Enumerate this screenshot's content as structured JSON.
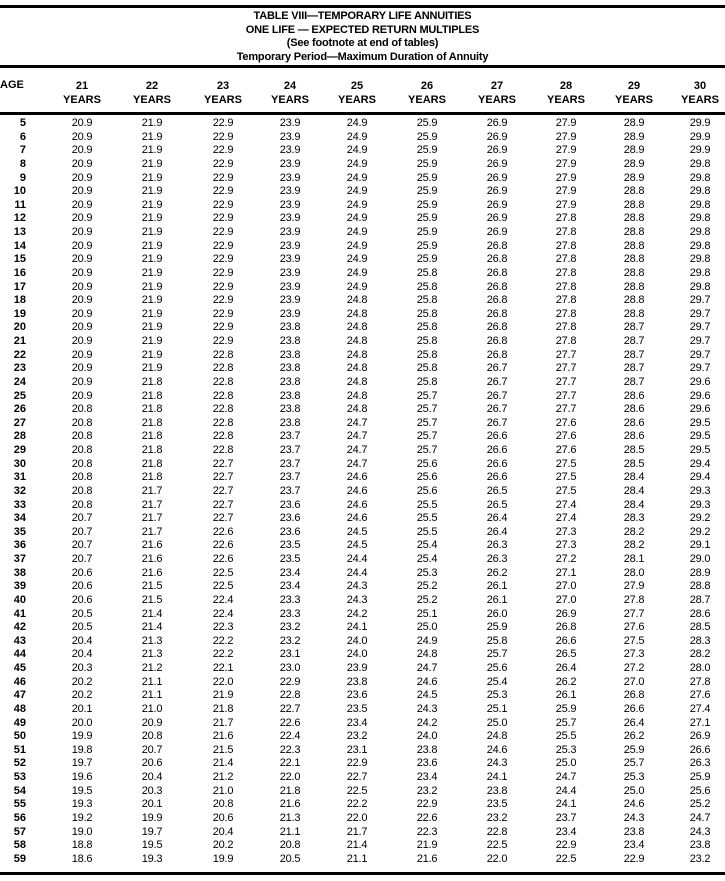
{
  "title": {
    "line1": "TABLE VIII—TEMPORARY LIFE ANNUITIES",
    "line2": "ONE LIFE — EXPECTED RETURN MULTIPLES",
    "line3": "(See footnote at end of tables)",
    "line4": "Temporary Period—Maximum Duration of Annuity"
  },
  "header": {
    "age_label": "AGE",
    "columns": [
      {
        "num": "21",
        "unit": "YEARS"
      },
      {
        "num": "22",
        "unit": "YEARS"
      },
      {
        "num": "23",
        "unit": "YEARS"
      },
      {
        "num": "24",
        "unit": "YEARS"
      },
      {
        "num": "25",
        "unit": "YEARS"
      },
      {
        "num": "26",
        "unit": "YEARS"
      },
      {
        "num": "27",
        "unit": "YEARS"
      },
      {
        "num": "28",
        "unit": "YEARS"
      },
      {
        "num": "29",
        "unit": "YEARS"
      },
      {
        "num": "30",
        "unit": "YEARS"
      }
    ]
  },
  "rows": [
    {
      "age": "5",
      "values": [
        "20.9",
        "21.9",
        "22.9",
        "23.9",
        "24.9",
        "25.9",
        "26.9",
        "27.9",
        "28.9",
        "29.9"
      ]
    },
    {
      "age": "6",
      "values": [
        "20.9",
        "21.9",
        "22.9",
        "23.9",
        "24.9",
        "25.9",
        "26.9",
        "27.9",
        "28.9",
        "29.9"
      ]
    },
    {
      "age": "7",
      "values": [
        "20.9",
        "21.9",
        "22.9",
        "23.9",
        "24.9",
        "25.9",
        "26.9",
        "27.9",
        "28.9",
        "29.9"
      ]
    },
    {
      "age": "8",
      "values": [
        "20.9",
        "21.9",
        "22.9",
        "23.9",
        "24.9",
        "25.9",
        "26.9",
        "27.9",
        "28.9",
        "29.8"
      ]
    },
    {
      "age": "9",
      "values": [
        "20.9",
        "21.9",
        "22.9",
        "23.9",
        "24.9",
        "25.9",
        "26.9",
        "27.9",
        "28.9",
        "29.8"
      ]
    },
    {
      "age": "10",
      "values": [
        "20.9",
        "21.9",
        "22.9",
        "23.9",
        "24.9",
        "25.9",
        "26.9",
        "27.9",
        "28.8",
        "29.8"
      ]
    },
    {
      "age": "11",
      "values": [
        "20.9",
        "21.9",
        "22.9",
        "23.9",
        "24.9",
        "25.9",
        "26.9",
        "27.9",
        "28.8",
        "29.8"
      ]
    },
    {
      "age": "12",
      "values": [
        "20.9",
        "21.9",
        "22.9",
        "23.9",
        "24.9",
        "25.9",
        "26.9",
        "27.8",
        "28.8",
        "29.8"
      ]
    },
    {
      "age": "13",
      "values": [
        "20.9",
        "21.9",
        "22.9",
        "23.9",
        "24.9",
        "25.9",
        "26.9",
        "27.8",
        "28.8",
        "29.8"
      ]
    },
    {
      "age": "14",
      "values": [
        "20.9",
        "21.9",
        "22.9",
        "23.9",
        "24.9",
        "25.9",
        "26.8",
        "27.8",
        "28.8",
        "29.8"
      ]
    },
    {
      "age": "15",
      "values": [
        "20.9",
        "21.9",
        "22.9",
        "23.9",
        "24.9",
        "25.9",
        "26.8",
        "27.8",
        "28.8",
        "29.8"
      ]
    },
    {
      "age": "16",
      "values": [
        "20.9",
        "21.9",
        "22.9",
        "23.9",
        "24.9",
        "25.8",
        "26.8",
        "27.8",
        "28.8",
        "29.8"
      ]
    },
    {
      "age": "17",
      "values": [
        "20.9",
        "21.9",
        "22.9",
        "23.9",
        "24.9",
        "25.8",
        "26.8",
        "27.8",
        "28.8",
        "29.8"
      ]
    },
    {
      "age": "18",
      "values": [
        "20.9",
        "21.9",
        "22.9",
        "23.9",
        "24.8",
        "25.8",
        "26.8",
        "27.8",
        "28.8",
        "29.7"
      ]
    },
    {
      "age": "19",
      "values": [
        "20.9",
        "21.9",
        "22.9",
        "23.9",
        "24.8",
        "25.8",
        "26.8",
        "27.8",
        "28.8",
        "29.7"
      ]
    },
    {
      "age": "20",
      "values": [
        "20.9",
        "21.9",
        "22.9",
        "23.8",
        "24.8",
        "25.8",
        "26.8",
        "27.8",
        "28.7",
        "29.7"
      ]
    },
    {
      "age": "21",
      "values": [
        "20.9",
        "21.9",
        "22.9",
        "23.8",
        "24.8",
        "25.8",
        "26.8",
        "27.8",
        "28.7",
        "29.7"
      ]
    },
    {
      "age": "22",
      "values": [
        "20.9",
        "21.9",
        "22.8",
        "23.8",
        "24.8",
        "25.8",
        "26.8",
        "27.7",
        "28.7",
        "29.7"
      ]
    },
    {
      "age": "23",
      "values": [
        "20.9",
        "21.9",
        "22.8",
        "23.8",
        "24.8",
        "25.8",
        "26.7",
        "27.7",
        "28.7",
        "29.7"
      ]
    },
    {
      "age": "24",
      "values": [
        "20.9",
        "21.8",
        "22.8",
        "23.8",
        "24.8",
        "25.8",
        "26.7",
        "27.7",
        "28.7",
        "29.6"
      ]
    },
    {
      "age": "25",
      "values": [
        "20.9",
        "21.8",
        "22.8",
        "23.8",
        "24.8",
        "25.7",
        "26.7",
        "27.7",
        "28.6",
        "29.6"
      ]
    },
    {
      "age": "26",
      "values": [
        "20.8",
        "21.8",
        "22.8",
        "23.8",
        "24.8",
        "25.7",
        "26.7",
        "27.7",
        "28.6",
        "29.6"
      ]
    },
    {
      "age": "27",
      "values": [
        "20.8",
        "21.8",
        "22.8",
        "23.8",
        "24.7",
        "25.7",
        "26.7",
        "27.6",
        "28.6",
        "29.5"
      ]
    },
    {
      "age": "28",
      "values": [
        "20.8",
        "21.8",
        "22.8",
        "23.7",
        "24.7",
        "25.7",
        "26.6",
        "27.6",
        "28.6",
        "29.5"
      ]
    },
    {
      "age": "29",
      "values": [
        "20.8",
        "21.8",
        "22.8",
        "23.7",
        "24.7",
        "25.7",
        "26.6",
        "27.6",
        "28.5",
        "29.5"
      ]
    },
    {
      "age": "30",
      "values": [
        "20.8",
        "21.8",
        "22.7",
        "23.7",
        "24.7",
        "25.6",
        "26.6",
        "27.5",
        "28.5",
        "29.4"
      ]
    },
    {
      "age": "31",
      "values": [
        "20.8",
        "21.8",
        "22.7",
        "23.7",
        "24.6",
        "25.6",
        "26.6",
        "27.5",
        "28.4",
        "29.4"
      ]
    },
    {
      "age": "32",
      "values": [
        "20.8",
        "21.7",
        "22.7",
        "23.7",
        "24.6",
        "25.6",
        "26.5",
        "27.5",
        "28.4",
        "29.3"
      ]
    },
    {
      "age": "33",
      "values": [
        "20.8",
        "21.7",
        "22.7",
        "23.6",
        "24.6",
        "25.5",
        "26.5",
        "27.4",
        "28.4",
        "29.3"
      ]
    },
    {
      "age": "34",
      "values": [
        "20.7",
        "21.7",
        "22.7",
        "23.6",
        "24.6",
        "25.5",
        "26.4",
        "27.4",
        "28.3",
        "29.2"
      ]
    },
    {
      "age": "35",
      "values": [
        "20.7",
        "21.7",
        "22.6",
        "23.6",
        "24.5",
        "25.5",
        "26.4",
        "27.3",
        "28.2",
        "29.2"
      ]
    },
    {
      "age": "36",
      "values": [
        "20.7",
        "21.6",
        "22.6",
        "23.5",
        "24.5",
        "25.4",
        "26.3",
        "27.3",
        "28.2",
        "29.1"
      ]
    },
    {
      "age": "37",
      "values": [
        "20.7",
        "21.6",
        "22.6",
        "23.5",
        "24.4",
        "25.4",
        "26.3",
        "27.2",
        "28.1",
        "29.0"
      ]
    },
    {
      "age": "38",
      "values": [
        "20.6",
        "21.6",
        "22.5",
        "23.4",
        "24.4",
        "25.3",
        "26.2",
        "27.1",
        "28.0",
        "28.9"
      ]
    },
    {
      "age": "39",
      "values": [
        "20.6",
        "21.5",
        "22.5",
        "23.4",
        "24.3",
        "25.2",
        "26.1",
        "27.0",
        "27.9",
        "28.8"
      ]
    },
    {
      "age": "40",
      "values": [
        "20.6",
        "21.5",
        "22.4",
        "23.3",
        "24.3",
        "25.2",
        "26.1",
        "27.0",
        "27.8",
        "28.7"
      ]
    },
    {
      "age": "41",
      "values": [
        "20.5",
        "21.4",
        "22.4",
        "23.3",
        "24.2",
        "25.1",
        "26.0",
        "26.9",
        "27.7",
        "28.6"
      ]
    },
    {
      "age": "42",
      "values": [
        "20.5",
        "21.4",
        "22.3",
        "23.2",
        "24.1",
        "25.0",
        "25.9",
        "26.8",
        "27.6",
        "28.5"
      ]
    },
    {
      "age": "43",
      "values": [
        "20.4",
        "21.3",
        "22.2",
        "23.2",
        "24.0",
        "24.9",
        "25.8",
        "26.6",
        "27.5",
        "28.3"
      ]
    },
    {
      "age": "44",
      "values": [
        "20.4",
        "21.3",
        "22.2",
        "23.1",
        "24.0",
        "24.8",
        "25.7",
        "26.5",
        "27.3",
        "28.2"
      ]
    },
    {
      "age": "45",
      "values": [
        "20.3",
        "21.2",
        "22.1",
        "23.0",
        "23.9",
        "24.7",
        "25.6",
        "26.4",
        "27.2",
        "28.0"
      ]
    },
    {
      "age": "46",
      "values": [
        "20.2",
        "21.1",
        "22.0",
        "22.9",
        "23.8",
        "24.6",
        "25.4",
        "26.2",
        "27.0",
        "27.8"
      ]
    },
    {
      "age": "47",
      "values": [
        "20.2",
        "21.1",
        "21.9",
        "22.8",
        "23.6",
        "24.5",
        "25.3",
        "26.1",
        "26.8",
        "27.6"
      ]
    },
    {
      "age": "48",
      "values": [
        "20.1",
        "21.0",
        "21.8",
        "22.7",
        "23.5",
        "24.3",
        "25.1",
        "25.9",
        "26.6",
        "27.4"
      ]
    },
    {
      "age": "49",
      "values": [
        "20.0",
        "20.9",
        "21.7",
        "22.6",
        "23.4",
        "24.2",
        "25.0",
        "25.7",
        "26.4",
        "27.1"
      ]
    },
    {
      "age": "50",
      "values": [
        "19.9",
        "20.8",
        "21.6",
        "22.4",
        "23.2",
        "24.0",
        "24.8",
        "25.5",
        "26.2",
        "26.9"
      ]
    },
    {
      "age": "51",
      "values": [
        "19.8",
        "20.7",
        "21.5",
        "22.3",
        "23.1",
        "23.8",
        "24.6",
        "25.3",
        "25.9",
        "26.6"
      ]
    },
    {
      "age": "52",
      "values": [
        "19.7",
        "20.6",
        "21.4",
        "22.1",
        "22.9",
        "23.6",
        "24.3",
        "25.0",
        "25.7",
        "26.3"
      ]
    },
    {
      "age": "53",
      "values": [
        "19.6",
        "20.4",
        "21.2",
        "22.0",
        "22.7",
        "23.4",
        "24.1",
        "24.7",
        "25.3",
        "25.9"
      ]
    },
    {
      "age": "54",
      "values": [
        "19.5",
        "20.3",
        "21.0",
        "21.8",
        "22.5",
        "23.2",
        "23.8",
        "24.4",
        "25.0",
        "25.6"
      ]
    },
    {
      "age": "55",
      "values": [
        "19.3",
        "20.1",
        "20.8",
        "21.6",
        "22.2",
        "22.9",
        "23.5",
        "24.1",
        "24.6",
        "25.2"
      ]
    },
    {
      "age": "56",
      "values": [
        "19.2",
        "19.9",
        "20.6",
        "21.3",
        "22.0",
        "22.6",
        "23.2",
        "23.7",
        "24.3",
        "24.7"
      ]
    },
    {
      "age": "57",
      "values": [
        "19.0",
        "19.7",
        "20.4",
        "21.1",
        "21.7",
        "22.3",
        "22.8",
        "23.4",
        "23.8",
        "24.3"
      ]
    },
    {
      "age": "58",
      "values": [
        "18.8",
        "19.5",
        "20.2",
        "20.8",
        "21.4",
        "21.9",
        "22.5",
        "22.9",
        "23.4",
        "23.8"
      ]
    },
    {
      "age": "59",
      "values": [
        "18.6",
        "19.3",
        "19.9",
        "20.5",
        "21.1",
        "21.6",
        "22.0",
        "22.5",
        "22.9",
        "23.2"
      ]
    }
  ]
}
